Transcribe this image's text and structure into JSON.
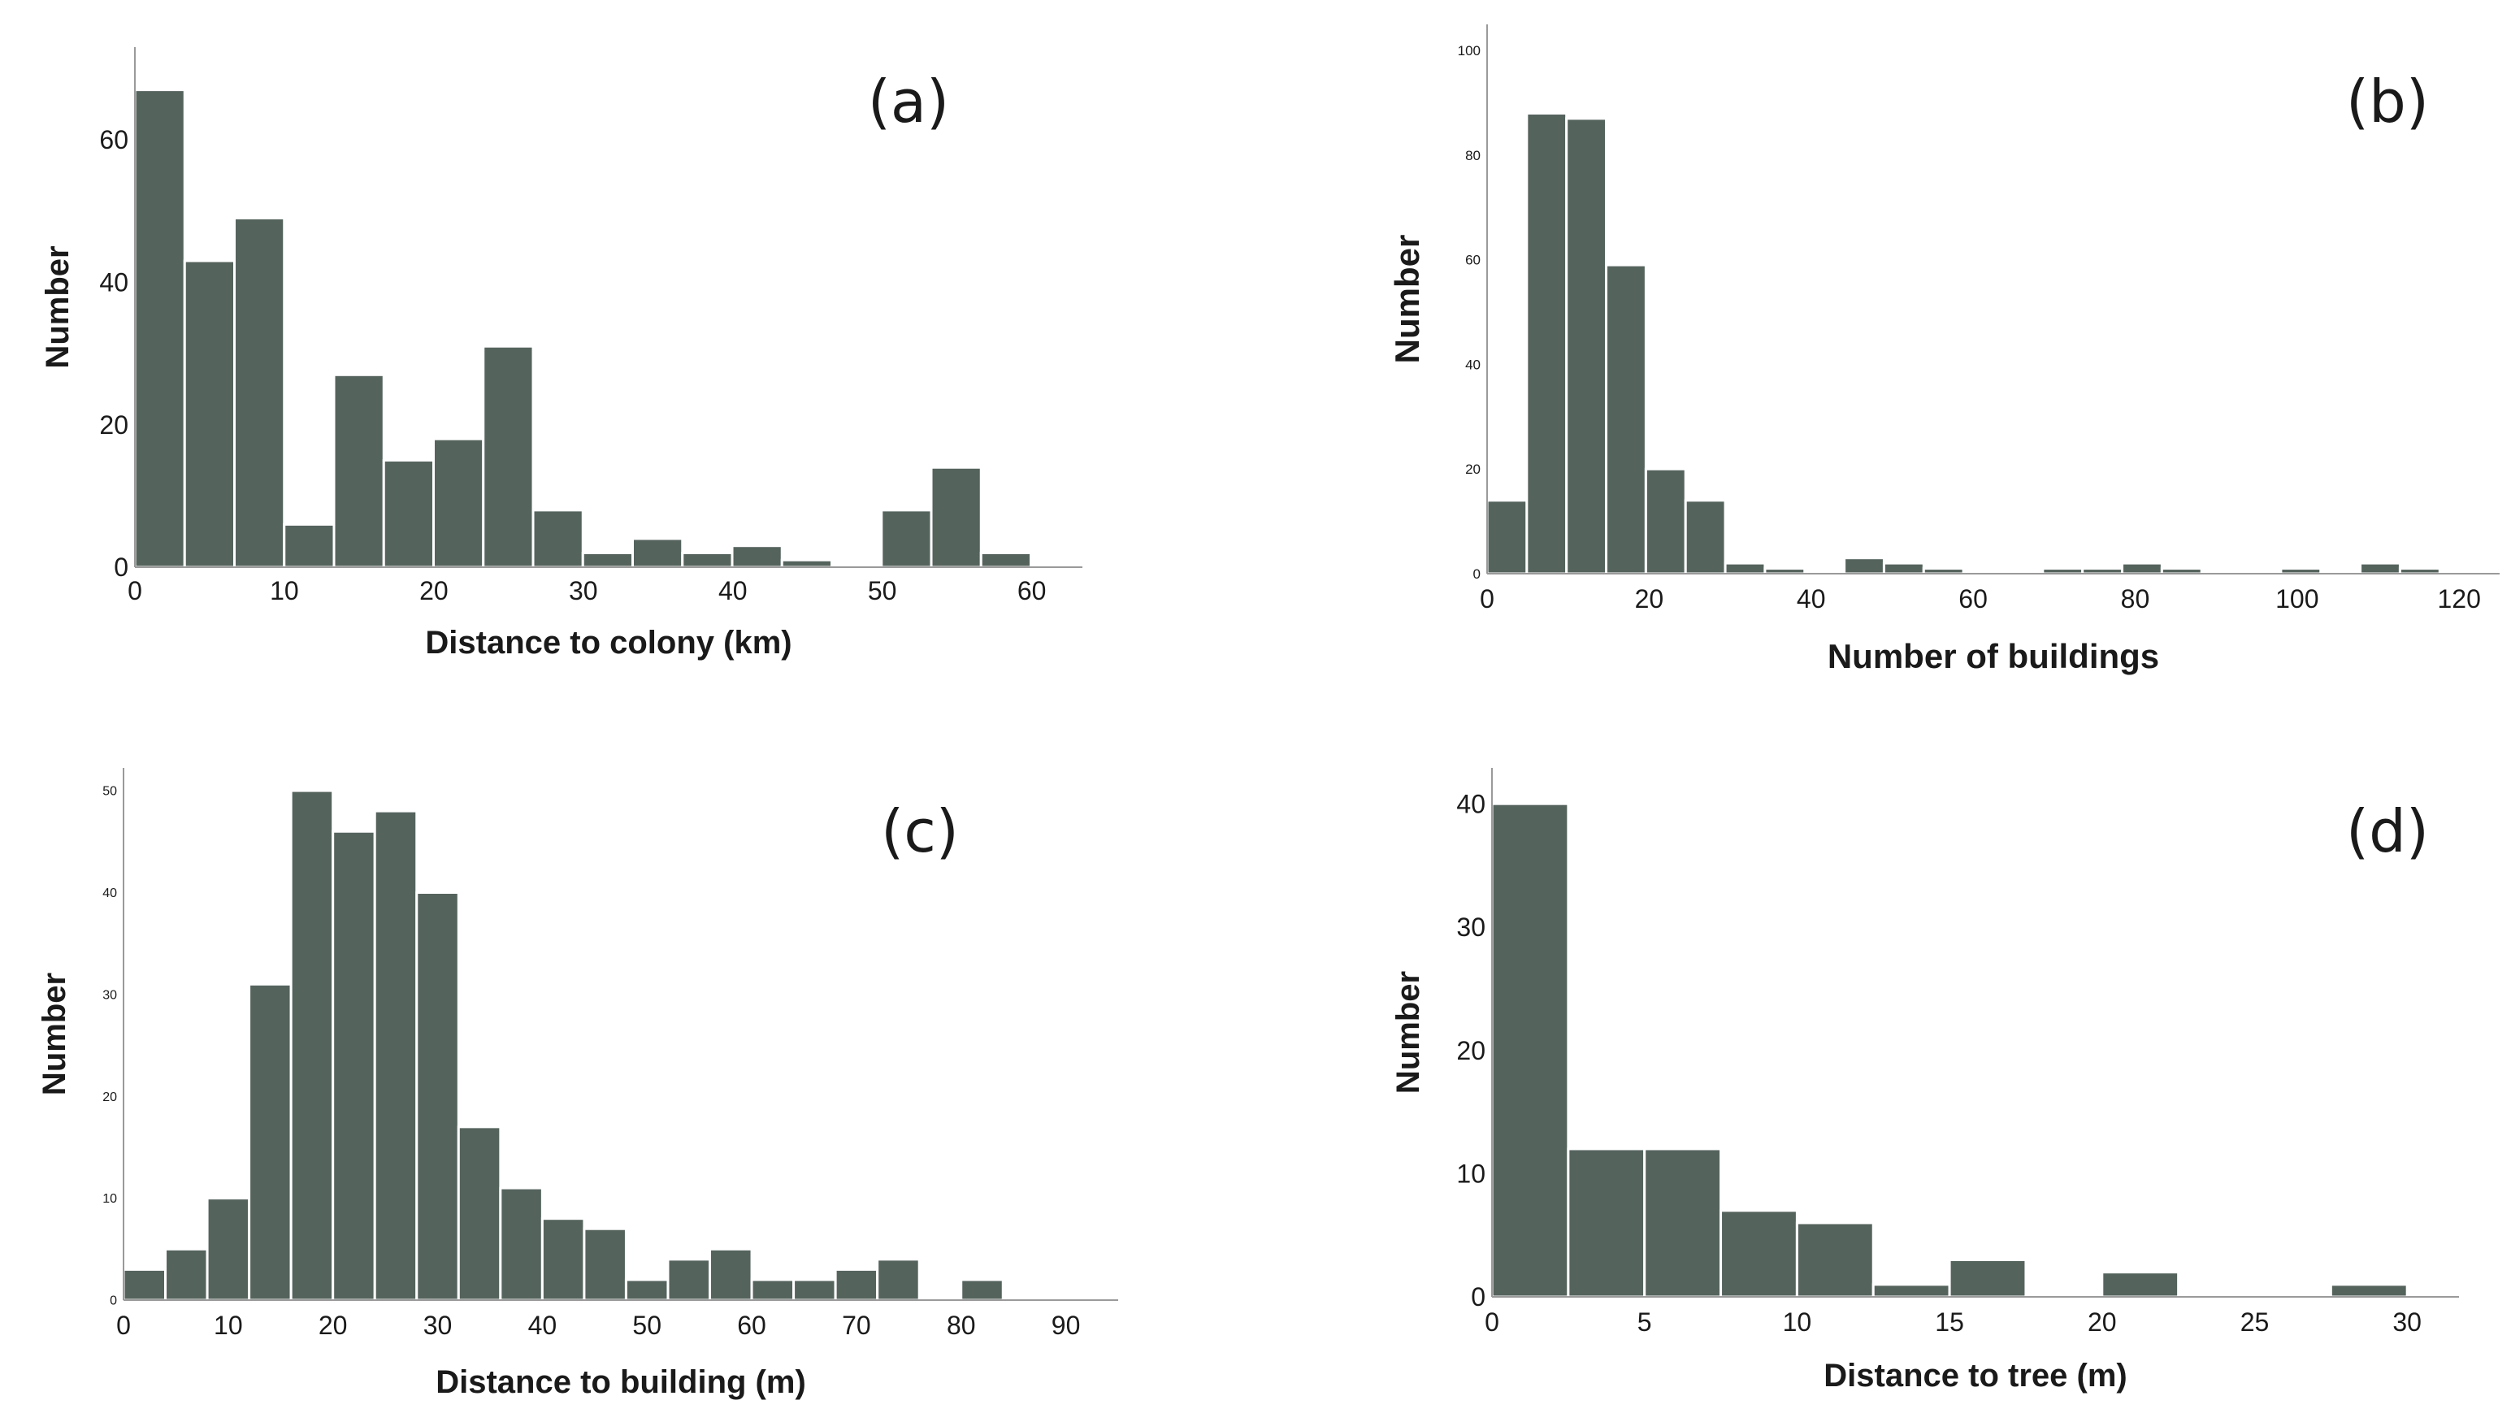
{
  "colors": {
    "bar_fill": "#55635d",
    "bar_edge": "#ffffff",
    "axis": "#9a9a9a",
    "text": "#1a1a1a"
  },
  "chart_data": [
    {
      "type": "bar",
      "title": "(a)",
      "xlabel": "Distance to colony (km)",
      "ylabel": "Number",
      "bin_start": 0,
      "bin_width": 3.33,
      "values": [
        67,
        43,
        49,
        6,
        27,
        15,
        18,
        31,
        8,
        2,
        4,
        2,
        3,
        1,
        0,
        8,
        14,
        2
      ],
      "xlim": [
        0,
        63.5
      ],
      "ylim": [
        0,
        73
      ],
      "xticks": [
        0,
        10,
        20,
        30,
        40,
        50,
        60
      ],
      "yticks": [
        0,
        20,
        40,
        60
      ]
    },
    {
      "type": "bar",
      "title": "(b)",
      "xlabel": "Number of buildings",
      "ylabel": "Number",
      "bin_start": 0,
      "bin_width": 4.9,
      "values": [
        14,
        88,
        87,
        59,
        20,
        14,
        2,
        1,
        0,
        3,
        2,
        1,
        0,
        0,
        1,
        1,
        2,
        1,
        0,
        0,
        1,
        0,
        2,
        1
      ],
      "xlim": [
        0,
        126
      ],
      "ylim": [
        0,
        105
      ],
      "xticks": [
        0,
        20,
        40,
        60,
        80,
        100,
        120
      ],
      "yticks": [
        0,
        20,
        40,
        60,
        80,
        100
      ]
    },
    {
      "type": "bar",
      "title": "(c)",
      "xlabel": "Distance to building (m)",
      "ylabel": "Number",
      "bin_start": 0,
      "bin_width": 4.0,
      "values": [
        3,
        5,
        10,
        31,
        50,
        46,
        48,
        40,
        17,
        11,
        8,
        7,
        2,
        4,
        5,
        2,
        2,
        3,
        4,
        0,
        2
      ],
      "xlim": [
        0,
        95
      ],
      "ylim": [
        0,
        52
      ],
      "xticks": [
        0,
        10,
        20,
        30,
        40,
        50,
        60,
        70,
        80,
        90
      ],
      "yticks": [
        0,
        10,
        20,
        30,
        40,
        50
      ]
    },
    {
      "type": "bar",
      "title": "(d)",
      "xlabel": "Distance to tree (m)",
      "ylabel": "Number",
      "bin_start": 0,
      "bin_width": 2.5,
      "values": [
        40,
        12,
        12,
        7,
        6,
        1,
        3,
        0,
        2,
        0,
        0,
        1
      ],
      "xlim": [
        0,
        31.7
      ],
      "ylim": [
        0,
        41
      ],
      "xticks": [
        0,
        5,
        10,
        15,
        20,
        25,
        30
      ],
      "yticks": [
        0,
        10,
        20,
        30,
        40
      ]
    }
  ]
}
